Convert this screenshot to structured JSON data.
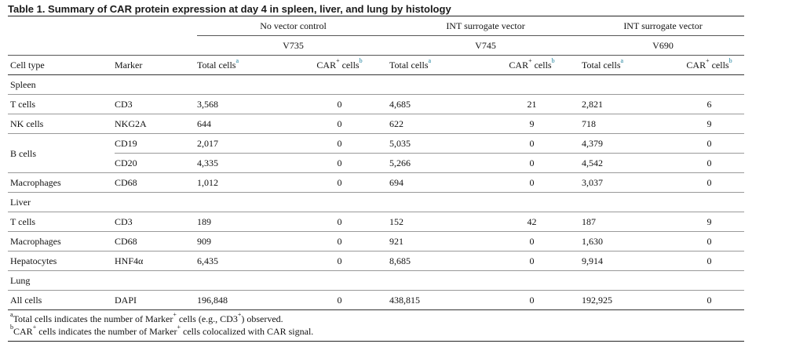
{
  "caption": "Table 1. Summary of CAR protein expression at day 4 in spleen, liver, and lung by histology",
  "groups": [
    {
      "name": "No vector control",
      "vector": "V735"
    },
    {
      "name": "INT surrogate vector",
      "vector": "V745"
    },
    {
      "name": "INT surrogate vector",
      "vector": "V690"
    }
  ],
  "headers": {
    "cell_type": "Cell type",
    "marker": "Marker",
    "total_cells": "Total cells",
    "total_sup": "a",
    "car_cells": "CAR",
    "car_plus": "+",
    "car_cells_suffix": " cells",
    "car_sup": "b"
  },
  "sections": [
    {
      "name": "Spleen",
      "rows": [
        {
          "cell_type": "T cells",
          "marker": "CD3",
          "v735_total": "3,568",
          "v735_car": "0",
          "v745_total": "4,685",
          "v745_car": "21",
          "v690_total": "2,821",
          "v690_car": "6"
        },
        {
          "cell_type": "NK cells",
          "marker": "NKG2A",
          "v735_total": "644",
          "v735_car": "0",
          "v745_total": "622",
          "v745_car": "9",
          "v690_total": "718",
          "v690_car": "9"
        },
        {
          "cell_type": "B cells",
          "marker": "CD19",
          "v735_total": "2,017",
          "v735_car": "0",
          "v745_total": "5,035",
          "v745_car": "0",
          "v690_total": "4,379",
          "v690_car": "0"
        },
        {
          "cell_type": "",
          "marker": "CD20",
          "v735_total": "4,335",
          "v735_car": "0",
          "v745_total": "5,266",
          "v745_car": "0",
          "v690_total": "4,542",
          "v690_car": "0"
        },
        {
          "cell_type": "Macrophages",
          "marker": "CD68",
          "v735_total": "1,012",
          "v735_car": "0",
          "v745_total": "694",
          "v745_car": "0",
          "v690_total": "3,037",
          "v690_car": "0"
        }
      ]
    },
    {
      "name": "Liver",
      "rows": [
        {
          "cell_type": "T cells",
          "marker": "CD3",
          "v735_total": "189",
          "v735_car": "0",
          "v745_total": "152",
          "v745_car": "42",
          "v690_total": "187",
          "v690_car": "9"
        },
        {
          "cell_type": "Macrophages",
          "marker": "CD68",
          "v735_total": "909",
          "v735_car": "0",
          "v745_total": "921",
          "v745_car": "0",
          "v690_total": "1,630",
          "v690_car": "0"
        },
        {
          "cell_type": "Hepatocytes",
          "marker": "HNF4α",
          "v735_total": "6,435",
          "v735_car": "0",
          "v745_total": "8,685",
          "v745_car": "0",
          "v690_total": "9,914",
          "v690_car": "0"
        }
      ]
    },
    {
      "name": "Lung",
      "rows": [
        {
          "cell_type": "All cells",
          "marker": "DAPI",
          "v735_total": "196,848",
          "v735_car": "0",
          "v745_total": "438,815",
          "v745_car": "0",
          "v690_total": "192,925",
          "v690_car": "0"
        }
      ]
    }
  ],
  "footnotes": {
    "a": {
      "mark": "a",
      "pre": "Total cells indicates the number of Marker",
      "sup1": "+",
      "mid": " cells (e.g., CD3",
      "sup2": "+",
      "post": ") observed."
    },
    "b": {
      "mark": "b",
      "pre": "CAR",
      "sup1": "+",
      "mid": " cells indicates the number of Marker",
      "sup2": "+",
      "post": " cells colocalized with CAR signal."
    }
  }
}
